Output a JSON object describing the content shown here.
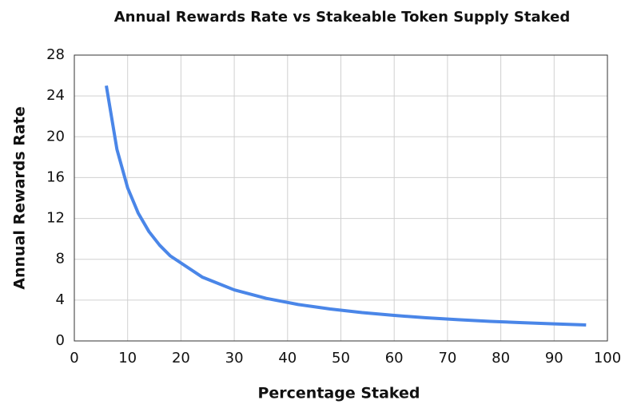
{
  "chart_data": {
    "type": "line",
    "title": "Annual Rewards Rate vs Stakeable Token Supply Staked",
    "x_label": "Percentage Staked",
    "y_label": "Annual Rewards Rate",
    "x": [
      6,
      8,
      10,
      12,
      14,
      16,
      18,
      24,
      30,
      36,
      42,
      48,
      54,
      60,
      66,
      72,
      78,
      84,
      90,
      96
    ],
    "series": [
      {
        "name": "Annual Rewards Rate",
        "color": "#4a86e8",
        "values": [
          25,
          18.75,
          15,
          12.5,
          10.71,
          9.38,
          8.33,
          6.25,
          5,
          4.17,
          3.57,
          3.13,
          2.78,
          2.5,
          2.27,
          2.08,
          1.92,
          1.79,
          1.67,
          1.56
        ]
      }
    ],
    "xlim": [
      0,
      100
    ],
    "xticks": [
      0,
      10,
      20,
      30,
      40,
      50,
      60,
      70,
      80,
      90,
      100
    ],
    "ylim": [
      0,
      28
    ],
    "yticks": [
      0,
      4,
      8,
      12,
      16,
      20,
      24,
      28
    ],
    "grid": true
  }
}
